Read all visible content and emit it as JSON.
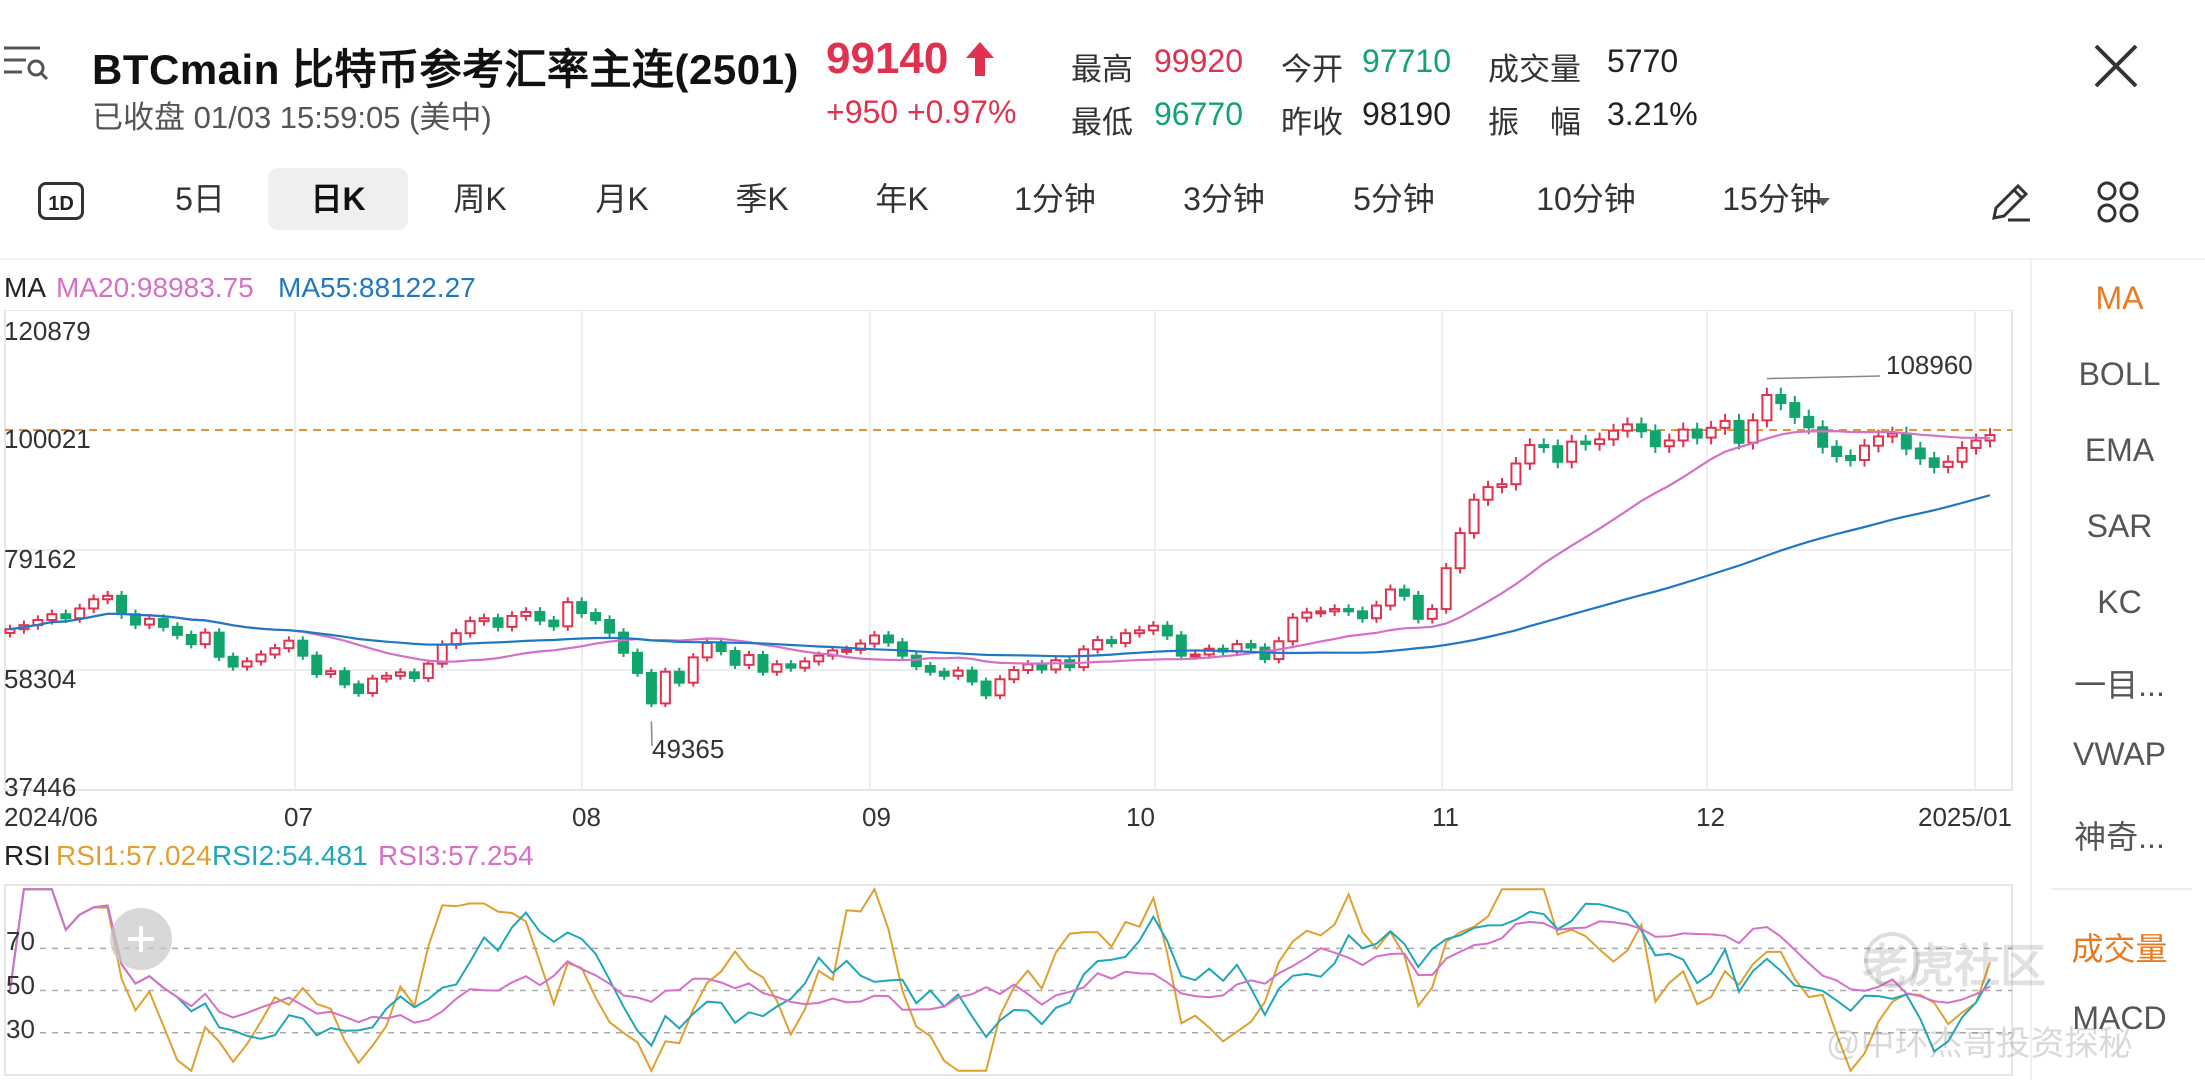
{
  "header": {
    "title": "BTCmain  比特币参考汇率主连(2501)",
    "price": "99140",
    "status": "已收盘 01/03 15:59:05 (美中)",
    "change": "+950 +0.97%",
    "stats": {
      "high_label": "最高",
      "high": "99920",
      "open_label": "今开",
      "open": "97710",
      "volume_label": "成交量",
      "volume": "5770",
      "low_label": "最低",
      "low": "96770",
      "prev_close_label": "昨收",
      "prev_close": "98190",
      "amplitude_label": "振　幅",
      "amplitude": "3.21%"
    }
  },
  "tabs": [
    "5日",
    "日K",
    "周K",
    "月K",
    "季K",
    "年K",
    "1分钟",
    "3分钟",
    "5分钟",
    "10分钟",
    "15分钟"
  ],
  "tab_1d": "1D",
  "active_tab": "日K",
  "ma_legend": {
    "label": "MA",
    "ma20": "MA20:98983.75",
    "ma55": "MA55:88122.27",
    "ma20_color": "#d670c6",
    "ma55_color": "#1f78c4"
  },
  "price_axis": [
    "120879",
    "100021",
    "79162",
    "58304",
    "37446"
  ],
  "date_axis": [
    "2024/06",
    "07",
    "08",
    "09",
    "10",
    "11",
    "12",
    "2025/01"
  ],
  "annotations": {
    "high": "108960",
    "low": "49365"
  },
  "rsi_legend": {
    "label": "RSI",
    "rsi1": "RSI1:57.024",
    "rsi2": "RSI2:54.481",
    "rsi3": "RSI3:57.254",
    "rsi1_color": "#e0a030",
    "rsi2_color": "#1fa7b8",
    "rsi3_color": "#d670c6"
  },
  "rsi_axis": [
    "70",
    "50",
    "30"
  ],
  "side_menu": [
    "MA",
    "BOLL",
    "EMA",
    "SAR",
    "KC",
    "一目...",
    "VWAP",
    "神奇..."
  ],
  "side_bottom": [
    "成交量",
    "MACD"
  ],
  "watermark": "老虎社区",
  "watermark_sub": "@中环杰哥投资探秘",
  "colors": {
    "up": "#e0324f",
    "down": "#12a46d",
    "ref_line": "#e8923a"
  },
  "chart_data": {
    "type": "candlestick",
    "ylim": [
      37446,
      120879
    ],
    "reference_line": 100021,
    "x": [
      "2024/06",
      "07",
      "08",
      "09",
      "10",
      "11",
      "12",
      "2025/01"
    ],
    "close_approx": [
      65400,
      66100,
      67000,
      68000,
      67300,
      69000,
      70600,
      71200,
      68000,
      66200,
      67200,
      65800,
      64400,
      62800,
      64800,
      60600,
      58900,
      59800,
      61000,
      62100,
      63400,
      60800,
      57600,
      58100,
      55800,
      54300,
      56800,
      57300,
      57900,
      56900,
      59400,
      62700,
      64700,
      66800,
      67300,
      65800,
      67700,
      68400,
      66900,
      65900,
      70100,
      68200,
      67000,
      64800,
      61300,
      57800,
      52500,
      58000,
      56100,
      60500,
      63000,
      61600,
      59200,
      60900,
      58000,
      59300,
      58700,
      59800,
      60800,
      61700,
      61800,
      62900,
      64300,
      63100,
      60800,
      59000,
      58000,
      57300,
      58200,
      56300,
      53900,
      56700,
      58300,
      59300,
      58400,
      60000,
      58800,
      61900,
      63500,
      63000,
      64700,
      65200,
      66000,
      64300,
      60800,
      61000,
      62000,
      61500,
      62800,
      62200,
      60200,
      63300,
      67400,
      68300,
      68500,
      68900,
      68500,
      67300,
      69500,
      72300,
      71200,
      67200,
      68900,
      76000,
      82100,
      87900,
      90100,
      90600,
      94200,
      97400,
      97200,
      94500,
      98000,
      97600,
      98400,
      99900,
      101000,
      99800,
      97200,
      98200,
      100100,
      98700,
      100400,
      101600,
      97800,
      101700,
      106100,
      104700,
      102300,
      100500,
      97100,
      95500,
      94800,
      97300,
      98900,
      99400,
      96800,
      95100,
      93600,
      94500,
      96900,
      98190,
      99140
    ],
    "ma20_last": 98983.75,
    "ma55_last": 88122.27,
    "annotated_high": 108960,
    "annotated_low": 49365,
    "rsi": {
      "rsi1": 57.024,
      "rsi2": 54.481,
      "rsi3": 57.254,
      "levels": [
        70,
        50,
        30
      ]
    }
  }
}
